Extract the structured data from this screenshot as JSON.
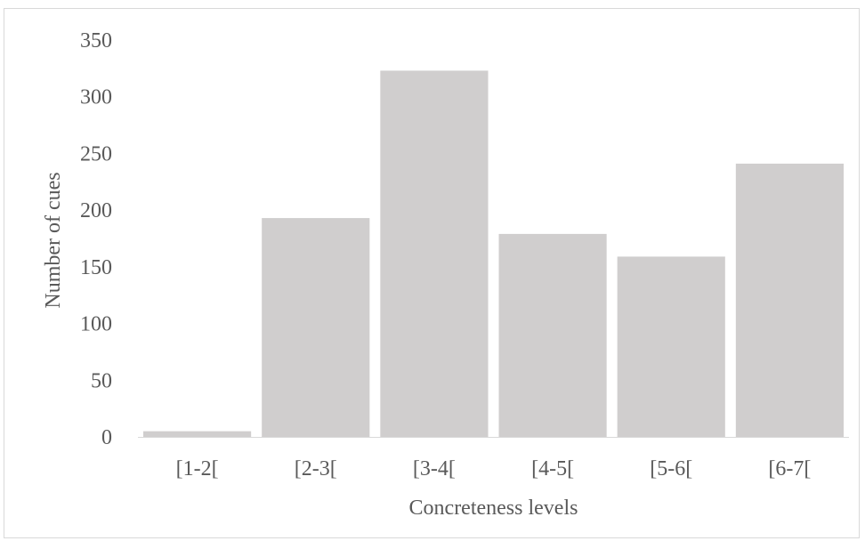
{
  "chart_data": {
    "type": "bar",
    "categories": [
      "[1-2[",
      "[2-3[",
      "[3-4[",
      "[4-5[",
      "[5-6[",
      "[6-7["
    ],
    "values": [
      5,
      193,
      323,
      179,
      159,
      241
    ],
    "title": "",
    "xlabel": "Concreteness levels",
    "ylabel": "Number of cues",
    "ylim": [
      0,
      350
    ],
    "yticks": [
      "0",
      "50",
      "100",
      "150",
      "200",
      "250",
      "300",
      "350"
    ],
    "grid": false,
    "legend": "none",
    "colors": {
      "bar": "#d0cece",
      "axis": "#d9d9d9",
      "text": "#595959"
    }
  }
}
